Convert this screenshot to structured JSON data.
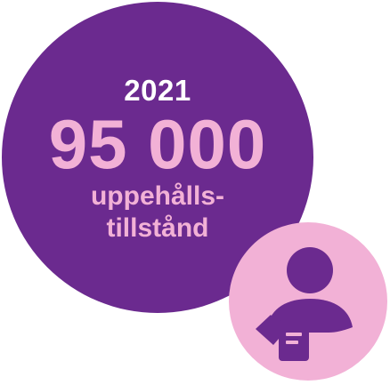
{
  "infographic": {
    "year": "2021",
    "value": "95 000",
    "label_line1": "uppehålls-",
    "label_line2": "tillstånd"
  },
  "colors": {
    "circle_primary": "#6b2a8f",
    "accent_pink": "#f2b1d6",
    "year_text": "#ffffff"
  },
  "icons": {
    "person": "person-with-document-icon"
  }
}
